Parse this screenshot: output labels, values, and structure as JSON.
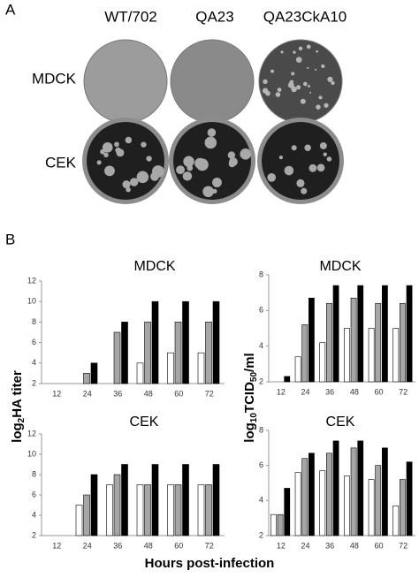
{
  "panel_a": {
    "label": "A",
    "columns": [
      "WT/702",
      "QA23",
      "QA23CkA10"
    ],
    "rows": [
      "MDCK",
      "CEK"
    ]
  },
  "panel_b": {
    "label": "B",
    "y_label_left": [
      "log",
      "2",
      "HA titer"
    ],
    "y_label_right": [
      "log",
      "10",
      "TCID",
      "50",
      "/ml"
    ],
    "x_label": "Hours post-infection"
  },
  "chart_data": [
    {
      "type": "bar",
      "title": "MDCK",
      "categories": [
        "12",
        "24",
        "36",
        "48",
        "60",
        "72"
      ],
      "series": [
        {
          "color": "#ffffff",
          "values": [
            null,
            null,
            null,
            4,
            5,
            5
          ]
        },
        {
          "color": "#a6a6a6",
          "values": [
            null,
            3,
            7,
            8,
            8,
            8
          ]
        },
        {
          "color": "#000000",
          "values": [
            null,
            4,
            8,
            10,
            10,
            10
          ]
        }
      ],
      "ylim": [
        2,
        12
      ],
      "yticks": [
        2,
        4,
        6,
        8,
        10,
        12
      ]
    },
    {
      "type": "bar",
      "title": "MDCK",
      "categories": [
        "12",
        "24",
        "36",
        "48",
        "60",
        "72"
      ],
      "series": [
        {
          "color": "#ffffff",
          "values": [
            null,
            3.4,
            4.2,
            5.0,
            5.0,
            5.0
          ]
        },
        {
          "color": "#a6a6a6",
          "values": [
            null,
            5.2,
            6.4,
            6.7,
            6.4,
            6.4
          ]
        },
        {
          "color": "#000000",
          "values": [
            2.3,
            6.7,
            7.4,
            7.4,
            7.4,
            7.4
          ]
        }
      ],
      "ylim": [
        2,
        8
      ],
      "yticks": [
        2,
        4,
        6,
        8
      ]
    },
    {
      "type": "bar",
      "title": "CEK",
      "categories": [
        "12",
        "24",
        "36",
        "48",
        "60",
        "72"
      ],
      "series": [
        {
          "color": "#ffffff",
          "values": [
            null,
            5,
            7,
            7,
            7,
            7
          ]
        },
        {
          "color": "#a6a6a6",
          "values": [
            null,
            6,
            8,
            7,
            7,
            7
          ]
        },
        {
          "color": "#000000",
          "values": [
            null,
            8,
            9,
            9,
            9,
            9
          ]
        }
      ],
      "ylim": [
        2,
        12
      ],
      "yticks": [
        2,
        4,
        6,
        8,
        10,
        12
      ]
    },
    {
      "type": "bar",
      "title": "CEK",
      "categories": [
        "12",
        "24",
        "36",
        "48",
        "60",
        "72"
      ],
      "series": [
        {
          "color": "#ffffff",
          "values": [
            3.2,
            5.6,
            5.7,
            5.4,
            5.2,
            3.7
          ]
        },
        {
          "color": "#a6a6a6",
          "values": [
            3.2,
            6.4,
            6.7,
            7.0,
            6.0,
            5.2
          ]
        },
        {
          "color": "#000000",
          "values": [
            4.7,
            6.7,
            7.4,
            7.4,
            7.0,
            6.2
          ]
        }
      ],
      "ylim": [
        2,
        8
      ],
      "yticks": [
        2,
        4,
        6,
        8
      ]
    }
  ]
}
